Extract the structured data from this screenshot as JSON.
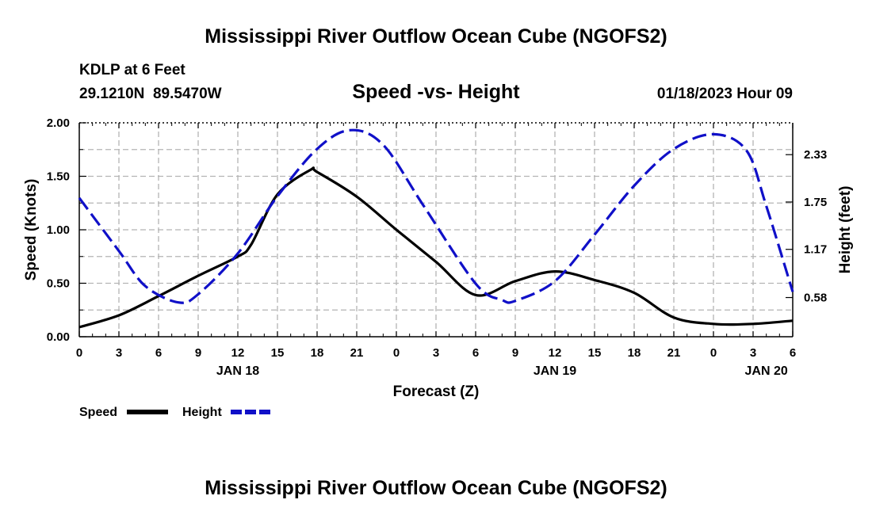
{
  "chart_data": {
    "type": "line",
    "title": "Mississippi River Outflow Ocean Cube (NGOFS2)",
    "subtitle": "Speed -vs- Height",
    "station": "KDLP at 6 Feet",
    "coords": "29.1210N  89.5470W",
    "datetime": "01/18/2023 Hour 09",
    "xlabel": "Forecast (Z)",
    "ylabel_left": "Speed (Knots)",
    "ylabel_right": "Height (feet)",
    "x_range": [
      0,
      54
    ],
    "x_tick_labels": [
      "0",
      "3",
      "6",
      "9",
      "12",
      "15",
      "18",
      "21",
      "0",
      "3",
      "6",
      "9",
      "12",
      "15",
      "18",
      "21",
      "0",
      "3",
      "6"
    ],
    "date_labels": [
      {
        "label": "JAN 18",
        "hour": 12
      },
      {
        "label": "JAN 19",
        "hour": 36
      },
      {
        "label": "JAN 20",
        "hour": 52
      }
    ],
    "ylim_left": [
      0,
      2.0
    ],
    "left_ticks": [
      "0.00",
      "0.50",
      "1.00",
      "1.50",
      "2.00"
    ],
    "ylim_right": [
      0.1,
      2.72
    ],
    "right_ticks": [
      {
        "label": "0.58",
        "value": 0.58
      },
      {
        "label": "1.17",
        "value": 1.17
      },
      {
        "label": "1.75",
        "value": 1.75
      },
      {
        "label": "2.33",
        "value": 2.33
      }
    ],
    "grid": true,
    "series": [
      {
        "name": "Speed",
        "axis": "left",
        "color": "#000000",
        "style": "solid",
        "x": [
          0,
          3,
          6,
          9,
          12,
          13,
          15,
          17.5,
          18,
          21,
          24,
          27,
          30,
          33,
          36,
          39,
          42,
          45,
          48,
          51,
          54
        ],
        "values": [
          0.09,
          0.2,
          0.38,
          0.57,
          0.75,
          0.86,
          1.33,
          1.56,
          1.54,
          1.31,
          1.0,
          0.7,
          0.39,
          0.52,
          0.61,
          0.53,
          0.41,
          0.18,
          0.12,
          0.12,
          0.15
        ]
      },
      {
        "name": "Height",
        "axis": "right",
        "color": "#1010C8",
        "style": "dashed",
        "x": [
          0,
          3,
          5,
          7.5,
          9,
          12,
          15,
          18,
          20.5,
          23,
          26,
          30,
          32,
          33,
          36,
          39,
          42,
          45,
          48,
          50.5,
          52,
          54
        ],
        "values": [
          1.8,
          1.15,
          0.72,
          0.52,
          0.62,
          1.12,
          1.82,
          2.4,
          2.63,
          2.45,
          1.72,
          0.75,
          0.55,
          0.54,
          0.78,
          1.35,
          1.95,
          2.4,
          2.58,
          2.38,
          1.7,
          0.65
        ]
      }
    ]
  },
  "legend": {
    "speed_label": "Speed",
    "height_label": "Height"
  },
  "footer": {
    "title": "Mississippi River Outflow Ocean Cube (NGOFS2)"
  }
}
